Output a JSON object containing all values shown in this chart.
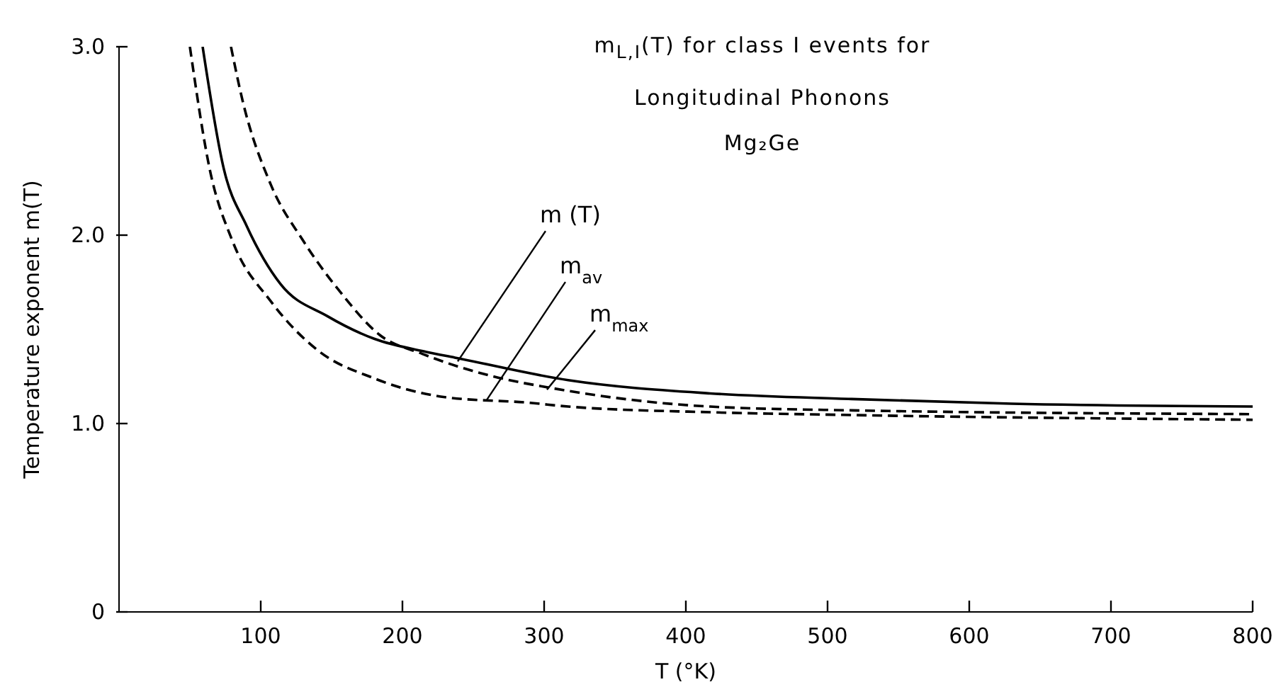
{
  "chart_data": {
    "type": "line",
    "title": "m$_{L,I}$(T)  for class I events for",
    "subtitle": "Longitudinal Phonons\nMg₂Ge",
    "xlabel": "T (°K)",
    "ylabel": "Temperature exponent m(T)",
    "xlim": [
      0,
      800
    ],
    "xticks": [
      100,
      200,
      300,
      400,
      500,
      600,
      700,
      800
    ],
    "ylim": [
      0,
      3
    ],
    "yticks": [
      0,
      {
        "value": 1,
        "label": "1.0"
      },
      {
        "value": 2,
        "label": "2.0"
      },
      {
        "value": 3,
        "label": "3.0"
      }
    ],
    "grid": false,
    "legend": false,
    "marker": "none",
    "series": [
      {
        "color": "#000000",
        "line_style": "solid",
        "x": [
          59,
          74,
          90,
          114,
          147,
          180,
          217,
          237,
          317,
          417,
          517,
          630,
          800
        ],
        "values": [
          3.0,
          2.35,
          2.05,
          1.74,
          1.57,
          1.45,
          1.38,
          1.35,
          1.23,
          1.16,
          1.13,
          1.105,
          1.09
        ]
      },
      {
        "color": "#000000",
        "line_style": "dashed",
        "x": [
          50,
          64,
          80,
          107,
          140,
          180,
          230,
          290,
          317,
          417,
          517,
          800
        ],
        "values": [
          3.0,
          2.35,
          1.97,
          1.65,
          1.39,
          1.24,
          1.14,
          1.11,
          1.09,
          1.06,
          1.045,
          1.02
        ]
      },
      {
        "color": "#000000",
        "line_style": "dashed",
        "x": [
          79,
          87,
          107,
          130,
          157,
          184,
          214,
          264,
          304,
          417,
          517,
          800
        ],
        "values": [
          3.0,
          2.72,
          2.27,
          1.97,
          1.69,
          1.47,
          1.37,
          1.25,
          1.19,
          1.09,
          1.07,
          1.05
        ]
      }
    ],
    "annotations": [
      {
        "text": "m (T)",
        "x": 239,
        "y": 1.33
      },
      {
        "text": "m$_{av}$",
        "x": 259,
        "y": 1.12
      },
      {
        "text": "m$_{max}$",
        "x": 302,
        "y": 1.18
      }
    ]
  }
}
